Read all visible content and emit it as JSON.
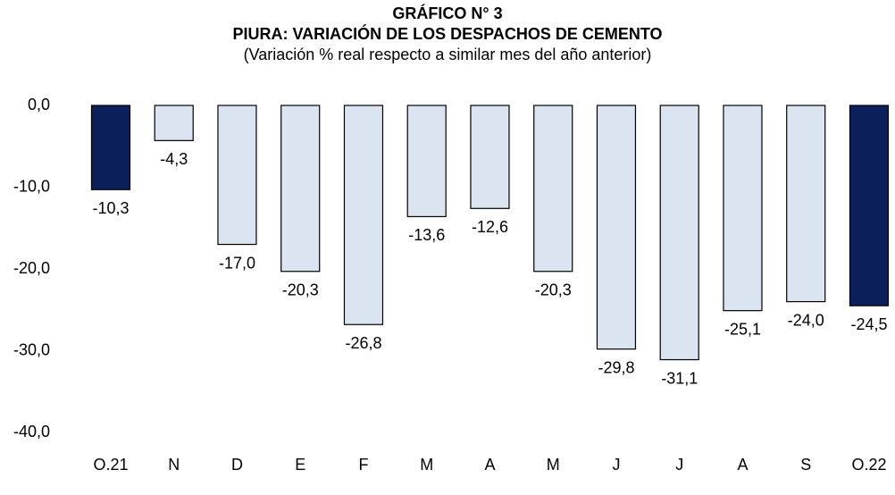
{
  "chart_data": {
    "type": "bar",
    "title": "GRÁFICO N° 3",
    "subtitle": "PIURA: VARIACIÓN DE LOS DESPACHOS DE CEMENTO",
    "note": "(Variación % real respecto a similar mes del año anterior)",
    "categories": [
      "O.21",
      "N",
      "D",
      "E",
      "F",
      "M",
      "A",
      "M",
      "J",
      "J",
      "A",
      "S",
      "O.22"
    ],
    "values": [
      -10.3,
      -4.3,
      -17.0,
      -20.3,
      -26.8,
      -13.6,
      -12.6,
      -20.3,
      -29.8,
      -31.1,
      -25.1,
      -24.0,
      -24.5
    ],
    "value_labels": [
      "-10,3",
      "-4,3",
      "-17,0",
      "-20,3",
      "-26,8",
      "-13,6",
      "-12,6",
      "-20,3",
      "-29,8",
      "-31,1",
      "-25,1",
      "-24,0",
      "-24,5"
    ],
    "colors": [
      "#0b1f5b",
      "#dbe5f1",
      "#dbe5f1",
      "#dbe5f1",
      "#dbe5f1",
      "#dbe5f1",
      "#dbe5f1",
      "#dbe5f1",
      "#dbe5f1",
      "#dbe5f1",
      "#dbe5f1",
      "#dbe5f1",
      "#0b1f5b"
    ],
    "ylim": [
      -40,
      0
    ],
    "yticks": [
      {
        "value": 0,
        "label": "0,0"
      },
      {
        "value": -10,
        "label": "-10,0"
      },
      {
        "value": -20,
        "label": "-20,0"
      },
      {
        "value": -30,
        "label": "-30,0"
      },
      {
        "value": -40,
        "label": "-40,0"
      }
    ],
    "grid": false
  }
}
